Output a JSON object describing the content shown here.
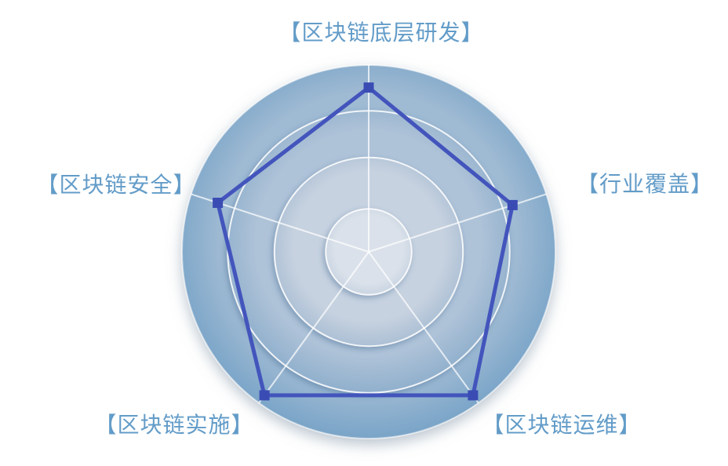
{
  "page": {
    "background_color": "#FFFFFF"
  },
  "chart_data": {
    "type": "radar",
    "indicators": [
      {
        "label": "【区块链底层研发】",
        "value": 88
      },
      {
        "label": "【行业覆盖】",
        "value": 81
      },
      {
        "label": "【区块链运维】",
        "value": 95
      },
      {
        "label": "【区块链实施】",
        "value": 95
      },
      {
        "label": "【区块链安全】",
        "value": 85
      }
    ],
    "max": 100,
    "range": [
      0,
      100
    ],
    "start_angle_deg": 90,
    "direction": "clockwise",
    "grid_shape": "circle",
    "grid_levels": [
      1.0,
      0.755,
      0.505,
      0.23
    ],
    "legend_visible": false,
    "colors": {
      "axis_label": "#639CC8",
      "series_line": "#4355BC",
      "series_marker": "#3A4CB4",
      "grid_line": "#FFFFFF",
      "spoke_line": "#FFFFFF",
      "ring_gradients": [
        {
          "inner": "#9FBAD3",
          "outer": "#74A1C6"
        },
        {
          "inner": "#AFC3D8",
          "outer": "#8CADCB"
        },
        {
          "inner": "#C7D2E0",
          "outer": "#A8BDD3"
        },
        {
          "inner": "#DAE1EA",
          "outer": "#C7D3E1"
        }
      ]
    }
  }
}
